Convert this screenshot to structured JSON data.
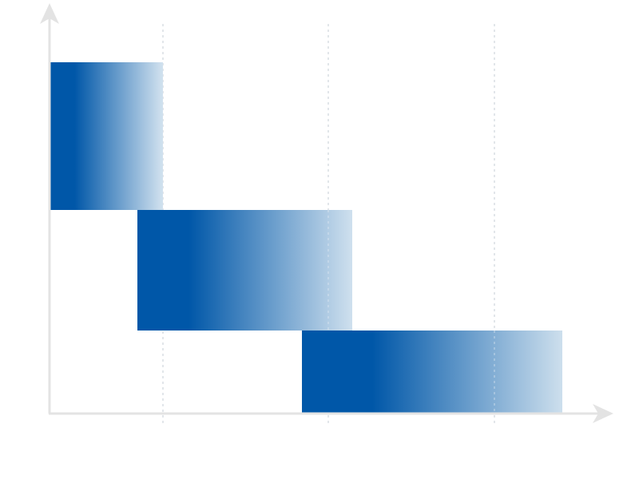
{
  "diagram": {
    "type": "staircase-phase-diagram",
    "phase_count": 3,
    "colors": {
      "bar_dark": "#0057A8",
      "bar_light": "#CFE0EE",
      "axis": "#E3E3E3",
      "gridline": "#D9DDE3",
      "background": "#FFFFFF"
    },
    "axes": {
      "x_arrow": true,
      "y_arrow": true,
      "x_label": "",
      "y_label": ""
    },
    "gridline_count": 3,
    "gridline_style": "dotted"
  }
}
